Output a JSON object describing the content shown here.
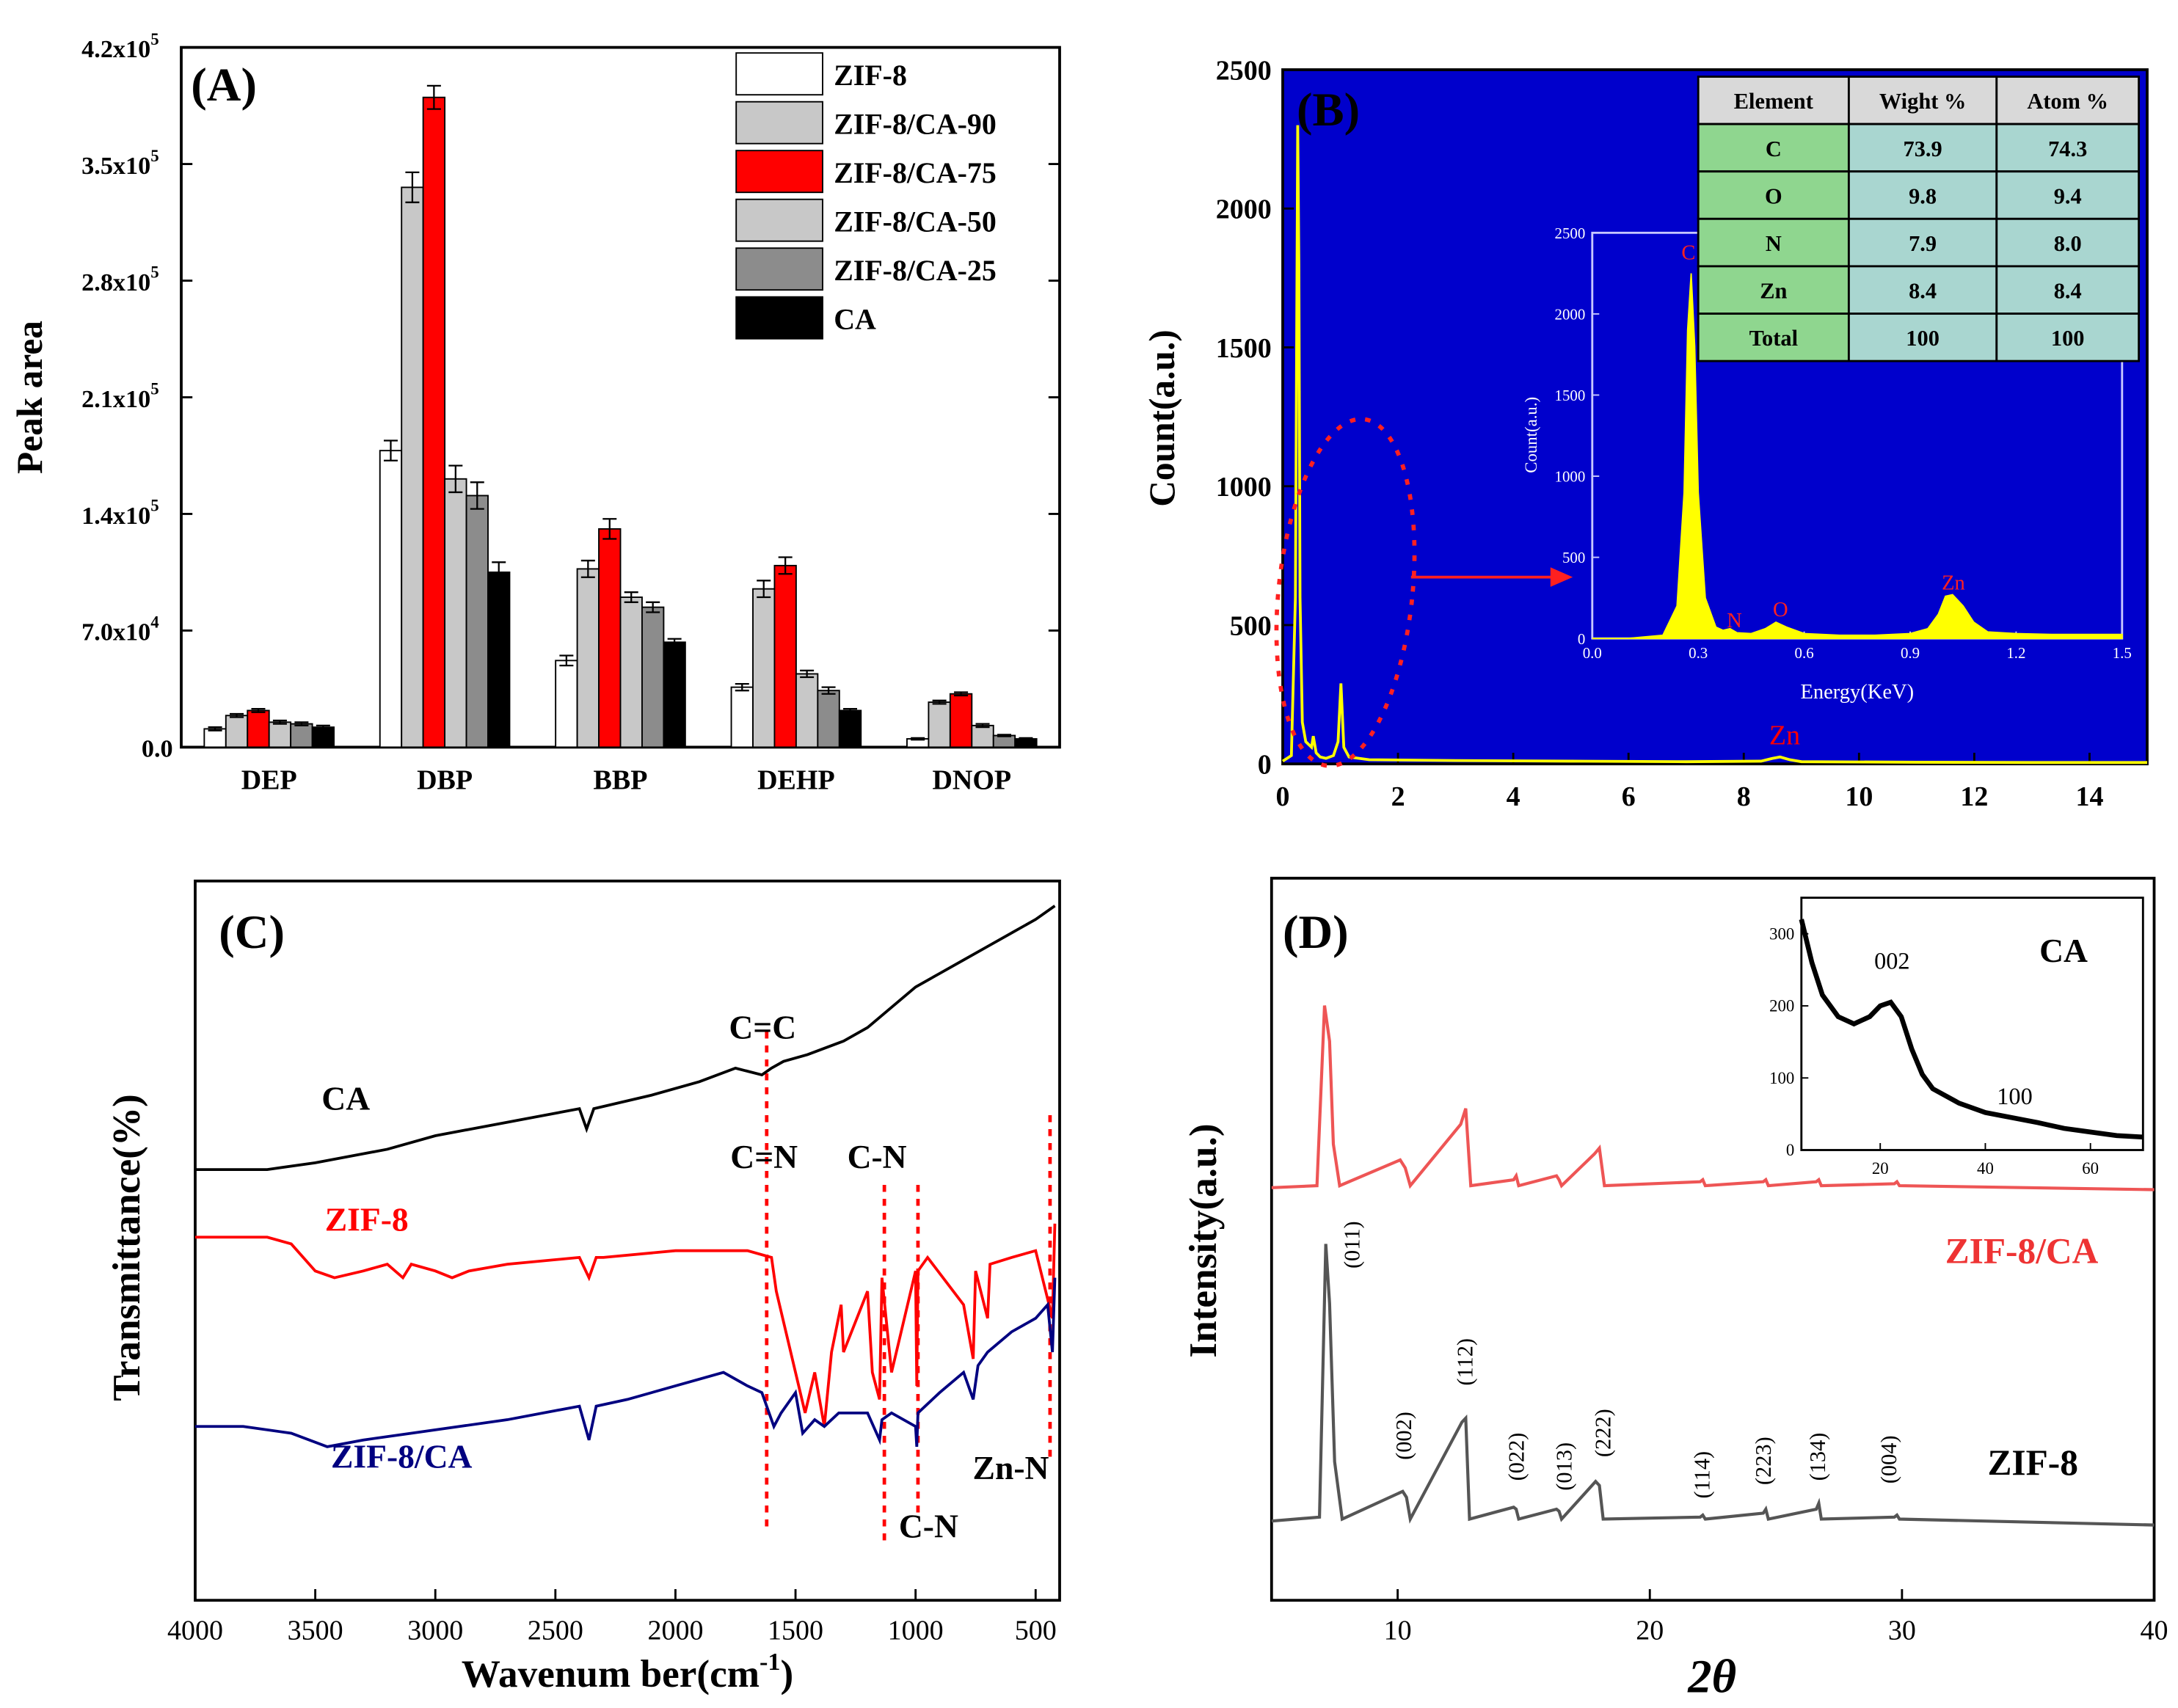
{
  "chart_data": [
    {
      "panel": "(A)",
      "type": "bar",
      "ylabel": "Peak area",
      "ylim": [
        0,
        420000
      ],
      "yticks": [
        "0.0",
        "7.0x10",
        "1.4x10",
        "2.1x10",
        "2.8x10",
        "3.5x10",
        "4.2x10"
      ],
      "ytick_exponents": [
        "",
        "4",
        "5",
        "5",
        "5",
        "5",
        "5"
      ],
      "ytick_values": [
        0,
        70000,
        140000,
        210000,
        280000,
        350000,
        420000
      ],
      "categories": [
        "DEP",
        "DBP",
        "BBP",
        "DEHP",
        "DNOP"
      ],
      "legend_position": "top-right",
      "series": [
        {
          "name": "ZIF-8",
          "color": "#ffffff",
          "values": [
            11000,
            178000,
            52000,
            36000,
            5000
          ],
          "errors": [
            1000,
            6000,
            3000,
            2000,
            500
          ]
        },
        {
          "name": "ZIF-8/CA-90",
          "color": "#c8c8c8",
          "values": [
            19000,
            336000,
            107000,
            95000,
            27000
          ],
          "errors": [
            1000,
            9000,
            5000,
            5000,
            1000
          ]
        },
        {
          "name": "ZIF-8/CA-75",
          "color": "#ff0000",
          "values": [
            22000,
            390000,
            131000,
            109000,
            32000
          ],
          "errors": [
            1000,
            7000,
            6000,
            5000,
            1000
          ]
        },
        {
          "name": "ZIF-8/CA-50",
          "color": "#c8c8c8",
          "values": [
            15000,
            161000,
            90000,
            44000,
            13000
          ],
          "errors": [
            1000,
            8000,
            3000,
            2000,
            1000
          ]
        },
        {
          "name": "ZIF-8/CA-25",
          "color": "#8c8c8c",
          "values": [
            14000,
            151000,
            84000,
            34000,
            7000
          ],
          "errors": [
            1000,
            8000,
            3000,
            2000,
            500
          ]
        },
        {
          "name": "CA",
          "color": "#000000",
          "values": [
            12000,
            105000,
            63000,
            22000,
            5000
          ],
          "errors": [
            1000,
            6000,
            2000,
            1000,
            500
          ]
        }
      ]
    },
    {
      "panel": "(B)",
      "type": "line",
      "xlabel": "",
      "ylabel": "Count(a.u.)",
      "xlim": [
        0,
        15
      ],
      "ylim": [
        0,
        2500
      ],
      "xticks": [
        "0",
        "2",
        "4",
        "6",
        "8",
        "10",
        "12",
        "14"
      ],
      "yticks": [
        "0",
        "500",
        "1000",
        "1500",
        "2000",
        "2500"
      ],
      "background": "#0000cc",
      "series": [
        {
          "color": "#ffff00",
          "x": [
            0.0,
            0.15,
            0.22,
            0.26,
            0.28,
            0.3,
            0.34,
            0.4,
            0.5,
            0.53,
            0.58,
            0.65,
            0.75,
            0.88,
            0.96,
            1.01,
            1.06,
            1.15,
            1.5,
            3,
            5,
            7,
            8.3,
            8.5,
            8.63,
            8.8,
            9.0,
            11,
            13,
            15
          ],
          "y": [
            10,
            30,
            600,
            2300,
            1800,
            600,
            150,
            80,
            60,
            100,
            40,
            25,
            20,
            30,
            80,
            290,
            60,
            25,
            15,
            12,
            10,
            8,
            10,
            20,
            25,
            15,
            8,
            6,
            5,
            5
          ]
        }
      ],
      "annotations": [
        "Zn"
      ],
      "inset": {
        "xlabel": "Energy(KeV)",
        "ylabel": "Count(a.u.)",
        "xlim": [
          0.0,
          1.5
        ],
        "ylim": [
          0,
          2500
        ],
        "xticks": [
          "0.0",
          "0.3",
          "0.6",
          "0.9",
          "1.2",
          "1.5"
        ],
        "yticks": [
          "0",
          "500",
          "1000",
          "1500",
          "2000",
          "2500"
        ],
        "peak_labels": [
          "C",
          "N",
          "O",
          "Zn"
        ],
        "series": [
          {
            "color": "#ffff00",
            "x": [
              0.0,
              0.1,
              0.2,
              0.24,
              0.26,
              0.27,
              0.28,
              0.29,
              0.3,
              0.32,
              0.35,
              0.37,
              0.39,
              0.41,
              0.45,
              0.49,
              0.52,
              0.55,
              0.6,
              0.7,
              0.8,
              0.9,
              0.95,
              0.98,
              1.0,
              1.02,
              1.05,
              1.08,
              1.12,
              1.2,
              1.3,
              1.4,
              1.5
            ],
            "y": [
              0,
              0,
              20,
              200,
              900,
              1900,
              2250,
              1800,
              900,
              250,
              70,
              50,
              60,
              35,
              30,
              60,
              100,
              70,
              30,
              20,
              20,
              30,
              60,
              150,
              260,
              270,
              200,
              100,
              40,
              30,
              25,
              25,
              25
            ]
          }
        ]
      },
      "table": {
        "headers": [
          "Element",
          "Wight %",
          "Atom %"
        ],
        "rows": [
          [
            "C",
            "73.9",
            "74.3"
          ],
          [
            "O",
            "9.8",
            "9.4"
          ],
          [
            "N",
            "7.9",
            "8.0"
          ],
          [
            "Zn",
            "8.4",
            "8.4"
          ],
          [
            "Total",
            "100",
            "100"
          ]
        ],
        "header_color": "#d9d9d9",
        "cell_color": "#a9d6d0",
        "label_color": "#8fd68f"
      }
    },
    {
      "panel": "(C)",
      "type": "line",
      "xlabel": "Wavenum ber(cm",
      "xlabel_superscript": "-1",
      "xlabel_close": ")",
      "ylabel": "Transmittance(%)",
      "xlim": [
        4000,
        400
      ],
      "xticks": [
        "4000",
        "3500",
        "3000",
        "2500",
        "2000",
        "1500",
        "1000",
        "500"
      ],
      "xtick_values": [
        4000,
        3500,
        3000,
        2500,
        2000,
        1500,
        1000,
        500
      ],
      "series": [
        {
          "name": "CA",
          "color": "#000000",
          "x": [
            4000,
            3700,
            3500,
            3200,
            3000,
            2700,
            2400,
            2370,
            2340,
            2100,
            1900,
            1750,
            1640,
            1600,
            1550,
            1450,
            1300,
            1200,
            1100,
            1000,
            900,
            800,
            700,
            600,
            500,
            420
          ],
          "y": [
            60,
            60,
            61,
            63,
            65,
            67,
            69,
            66,
            69,
            71,
            73,
            75,
            74,
            75,
            76,
            77,
            79,
            81,
            84,
            87,
            89,
            91,
            93,
            95,
            97,
            99
          ]
        },
        {
          "name": "ZIF-8",
          "color": "#ff0000",
          "x": [
            4000,
            3700,
            3600,
            3500,
            3420,
            3300,
            3200,
            3135,
            3100,
            3000,
            2930,
            2860,
            2700,
            2400,
            2360,
            2330,
            2300,
            2000,
            1700,
            1600,
            1580,
            1500,
            1460,
            1420,
            1380,
            1350,
            1310,
            1300,
            1200,
            1180,
            1150,
            1140,
            1100,
            1000,
            995,
            990,
            950,
            800,
            760,
            750,
            700,
            690,
            600,
            500,
            430,
            420
          ],
          "y": [
            50,
            50,
            49,
            45,
            44,
            45,
            46,
            44,
            46,
            45,
            44,
            45,
            46,
            47,
            44,
            47,
            47,
            48,
            48,
            47,
            42,
            30,
            24,
            30,
            22,
            33,
            40,
            33,
            42,
            30,
            26,
            44,
            30,
            45,
            28,
            45,
            47,
            40,
            32,
            45,
            38,
            46,
            47,
            48,
            38,
            52
          ]
        },
        {
          "name": "ZIF-8/CA",
          "color": "#000080",
          "x": [
            4000,
            3800,
            3600,
            3450,
            3300,
            3100,
            2900,
            2700,
            2400,
            2360,
            2330,
            2200,
            2000,
            1800,
            1700,
            1640,
            1590,
            1560,
            1500,
            1470,
            1420,
            1380,
            1320,
            1200,
            1150,
            1140,
            1100,
            1000,
            995,
            990,
            900,
            800,
            760,
            740,
            700,
            600,
            500,
            450,
            430,
            420
          ],
          "y": [
            22,
            22,
            21,
            19,
            20,
            21,
            22,
            23,
            25,
            20,
            25,
            26,
            28,
            30,
            28,
            27,
            22,
            24,
            27,
            21,
            23,
            22,
            24,
            24,
            20,
            23,
            24,
            22,
            19,
            24,
            27,
            30,
            26,
            31,
            33,
            36,
            38,
            40,
            33,
            44
          ]
        }
      ],
      "series_labels": [
        "CA",
        "ZIF-8",
        "ZIF-8/CA"
      ],
      "annotations": [
        "C=C",
        "C=N",
        "C-N",
        "C-N",
        "Zn-N"
      ]
    },
    {
      "panel": "(D)",
      "type": "line",
      "xlabel": "2θ",
      "ylabel": "Intensity(a.u.)",
      "xlim": [
        5,
        40
      ],
      "xticks": [
        "10",
        "20",
        "30",
        "40"
      ],
      "xtick_values": [
        10,
        20,
        30,
        40
      ],
      "series": [
        {
          "name": "ZIF-8/CA",
          "color": "#ee5555",
          "x": [
            5,
            6.8,
            7.1,
            7.3,
            7.45,
            7.7,
            10.1,
            10.3,
            10.5,
            12.5,
            12.7,
            12.9,
            14.6,
            14.7,
            14.8,
            16.3,
            16.4,
            16.5,
            17.8,
            18.0,
            18.2,
            22.0,
            22.1,
            22.2,
            24.5,
            24.6,
            24.7,
            26.6,
            26.7,
            26.8,
            29.7,
            29.8,
            29.9,
            40
          ],
          "y": [
            8,
            9,
            100,
            82,
            30,
            9,
            22,
            18,
            9,
            40,
            48,
            9,
            12,
            14,
            9,
            14,
            12,
            9,
            25,
            28,
            9,
            11,
            12,
            9,
            11,
            12,
            9,
            11,
            12,
            9,
            10,
            11,
            9,
            7
          ]
        },
        {
          "name": "ZIF-8",
          "color": "#555555",
          "x": [
            5,
            6.9,
            7.15,
            7.3,
            7.5,
            7.8,
            10.2,
            10.35,
            10.5,
            12.55,
            12.7,
            12.85,
            14.6,
            14.7,
            14.8,
            16.3,
            16.4,
            16.5,
            17.85,
            18.0,
            18.15,
            22.0,
            22.1,
            22.2,
            24.5,
            24.6,
            24.7,
            26.6,
            26.7,
            26.8,
            29.7,
            29.8,
            29.9,
            40
          ],
          "y": [
            10,
            12,
            150,
            120,
            40,
            11,
            25,
            22,
            11,
            60,
            62,
            11,
            17,
            16,
            11,
            16,
            15,
            11,
            30,
            28,
            11,
            12,
            13,
            11,
            14,
            16,
            11,
            16,
            19,
            11,
            12,
            13,
            11,
            8
          ]
        }
      ],
      "series_labels": [
        "ZIF-8/CA",
        "ZIF-8"
      ],
      "peak_labels": [
        "(011)",
        "(002)",
        "(112)",
        "(022)",
        "(013)",
        "(222)",
        "(114)",
        "(223)",
        "(134)",
        "(004)"
      ],
      "inset": {
        "title": "CA",
        "xlim": [
          5,
          70
        ],
        "ylim": [
          0,
          350
        ],
        "xticks": [
          "20",
          "40",
          "60"
        ],
        "yticks": [
          "0",
          "100",
          "200",
          "300"
        ],
        "peak_labels": [
          "002",
          "100"
        ],
        "series": [
          {
            "color": "#000000",
            "x": [
              5,
              7,
              9,
              12,
              15,
              18,
              20,
              22,
              24,
              26,
              28,
              30,
              35,
              40,
              45,
              50,
              55,
              60,
              65,
              70
            ],
            "y": [
              320,
              260,
              215,
              185,
              175,
              185,
              200,
              205,
              185,
              140,
              105,
              85,
              65,
              52,
              45,
              38,
              30,
              25,
              20,
              18
            ]
          }
        ]
      }
    }
  ]
}
